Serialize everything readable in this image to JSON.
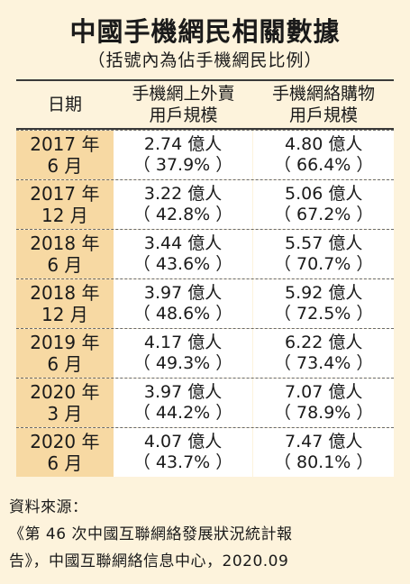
{
  "title": "中國手機網民相關數據",
  "subtitle": "（括號內為佔手機網民比例）",
  "table": {
    "headers": [
      {
        "line1": "日期",
        "line2": ""
      },
      {
        "line1": "手機網上外賣",
        "line2": "用戶規模"
      },
      {
        "line1": "手機網絡購物",
        "line2": "用戶規模"
      }
    ],
    "rows": [
      {
        "year": "2017 年",
        "month": "6 月",
        "takeout": "2.74 億人",
        "takeout_pct": "（ 37.9% ）",
        "shopping": "4.80 億人",
        "shopping_pct": "（ 66.4% ）"
      },
      {
        "year": "2017 年",
        "month": "12 月",
        "takeout": "3.22 億人",
        "takeout_pct": "（ 42.8% ）",
        "shopping": "5.06 億人",
        "shopping_pct": "（ 67.2% ）"
      },
      {
        "year": "2018 年",
        "month": "6 月",
        "takeout": "3.44 億人",
        "takeout_pct": "（ 43.6% ）",
        "shopping": "5.57 億人",
        "shopping_pct": "（ 70.7% ）"
      },
      {
        "year": "2018 年",
        "month": "12 月",
        "takeout": "3.97 億人",
        "takeout_pct": "（ 48.6% ）",
        "shopping": "5.92 億人",
        "shopping_pct": "（ 72.5% ）"
      },
      {
        "year": "2019 年",
        "month": "6 月",
        "takeout": "4.17 億人",
        "takeout_pct": "（ 49.3% ）",
        "shopping": "6.22 億人",
        "shopping_pct": "（ 73.4% ）"
      },
      {
        "year": "2020 年",
        "month": "3 月",
        "takeout": "3.97 億人",
        "takeout_pct": "（ 44.2% ）",
        "shopping": "7.07 億人",
        "shopping_pct": "（ 78.9% ）"
      },
      {
        "year": "2020 年",
        "month": "6 月",
        "takeout": "4.07 億人",
        "takeout_pct": "（ 43.7% ）",
        "shopping": "7.47 億人",
        "shopping_pct": "（ 80.1% ）"
      }
    ]
  },
  "source": {
    "label": "資料來源：",
    "line1": "《第 46 次中國互聯網絡發展狀況統計報",
    "line2": "告》，中國互聯網絡信息中心，2020.09"
  },
  "colors": {
    "background": "#fdf3dc",
    "date_column": "#f7d9a3",
    "value_cells": "#ffffff"
  }
}
